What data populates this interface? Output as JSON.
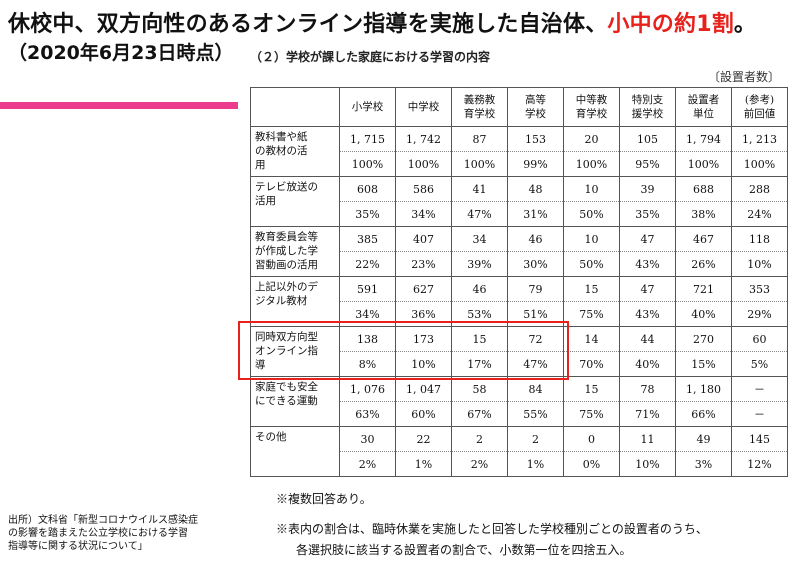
{
  "title_main": "休校中、双方向性のあるオンライン指導を実施した自治体、",
  "title_highlight": "小中の約1割",
  "title_end": "。",
  "date": "（2020年6月23日時点）",
  "subtitle": "（２）学校が課した家庭における学習の内容",
  "unit_label": "〔設置者数〕",
  "headers": [
    "小学校",
    "中学校",
    "義務教\n育学校",
    "高等\n学校",
    "中等教\n育学校",
    "特別支\n援学校",
    "設置者\n単位",
    "(参考)\n前回値"
  ],
  "rows": [
    {
      "label": "教科書や紙\nの教材の活\n用",
      "counts": [
        "1, 715",
        "1, 742",
        "87",
        "153",
        "20",
        "105",
        "1, 794",
        "1, 213"
      ],
      "pcts": [
        "100%",
        "100%",
        "100%",
        "99%",
        "100%",
        "95%",
        "100%",
        "100%"
      ]
    },
    {
      "label": "テレビ放送の\n活用",
      "counts": [
        "608",
        "586",
        "41",
        "48",
        "10",
        "39",
        "688",
        "288"
      ],
      "pcts": [
        "35%",
        "34%",
        "47%",
        "31%",
        "50%",
        "35%",
        "38%",
        "24%"
      ]
    },
    {
      "label": "教育委員会等\nが作成した学\n習動画の活用",
      "counts": [
        "385",
        "407",
        "34",
        "46",
        "10",
        "47",
        "467",
        "118"
      ],
      "pcts": [
        "22%",
        "23%",
        "39%",
        "30%",
        "50%",
        "43%",
        "26%",
        "10%"
      ]
    },
    {
      "label": "上記以外のデ\nジタル教材",
      "counts": [
        "591",
        "627",
        "46",
        "79",
        "15",
        "47",
        "721",
        "353"
      ],
      "pcts": [
        "34%",
        "36%",
        "53%",
        "51%",
        "75%",
        "43%",
        "40%",
        "29%"
      ]
    },
    {
      "label": "同時双方向型\nオンライン指\n導",
      "counts": [
        "138",
        "173",
        "15",
        "72",
        "14",
        "44",
        "270",
        "60"
      ],
      "pcts": [
        "8%",
        "10%",
        "17%",
        "47%",
        "70%",
        "40%",
        "15%",
        "5%"
      ]
    },
    {
      "label": "家庭でも安全\nにできる運動",
      "counts": [
        "1, 076",
        "1, 047",
        "58",
        "84",
        "15",
        "78",
        "1, 180",
        "－"
      ],
      "pcts": [
        "63%",
        "60%",
        "67%",
        "55%",
        "75%",
        "71%",
        "66%",
        "－"
      ]
    },
    {
      "label": "その他",
      "counts": [
        "30",
        "22",
        "2",
        "2",
        "0",
        "11",
        "49",
        "145"
      ],
      "pcts": [
        "2%",
        "1%",
        "2%",
        "1%",
        "0%",
        "10%",
        "3%",
        "12%"
      ]
    }
  ],
  "note1": "※複数回答あり。",
  "note2": "※表内の割合は、臨時休業を実施したと回答した学校種別ごとの設置者のうち、",
  "note3": "各選択肢に該当する設置者の割合で、小数第一位を四捨五入。",
  "source": "出所）文科省「新型コロナウイルス感染症\nの影響を踏まえた公立学校における学習\n指導等に関する状況について」",
  "colors": {
    "highlight": "#e8211c",
    "pink_bar": "#ec3c8e"
  }
}
